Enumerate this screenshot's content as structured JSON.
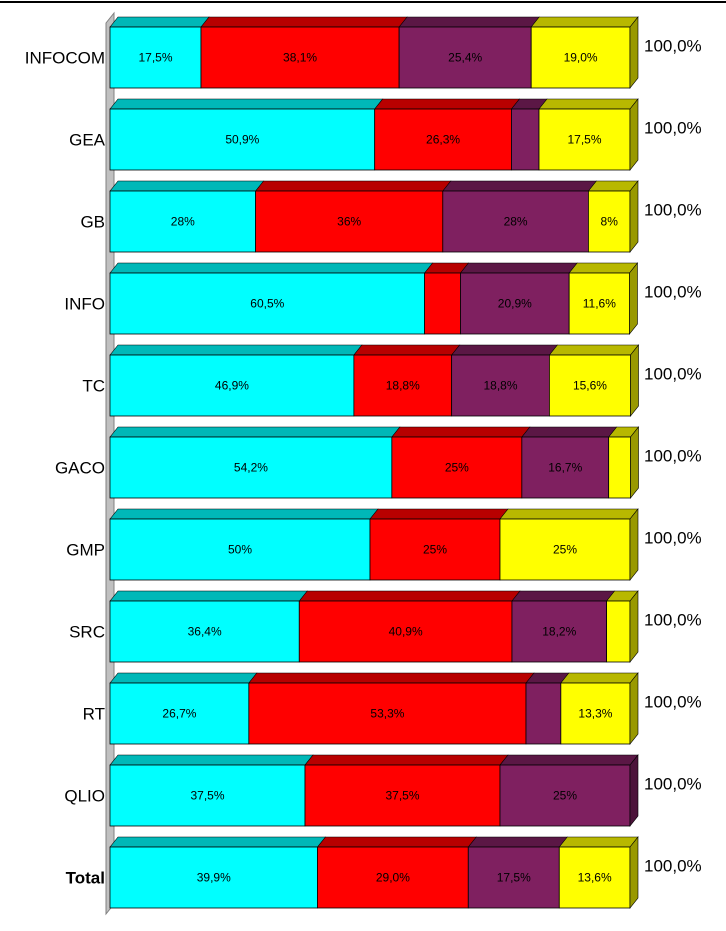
{
  "chart_data": {
    "type": "bar",
    "orientation": "horizontal",
    "stacked": true,
    "three_d": true,
    "grid": false,
    "categories": [
      "INFOCOM",
      "GEA",
      "GB",
      "INFO",
      "TC",
      "GACO",
      "GMP",
      "SRC",
      "RT",
      "QLIO",
      "Total"
    ],
    "series": [
      {
        "values": [
          17.5,
          50.9,
          28,
          60.5,
          46.9,
          54.2,
          50,
          36.4,
          26.7,
          37.5,
          39.9
        ],
        "labels": [
          "17,5%",
          "50,9%",
          "28%",
          "60,5%",
          "46,9%",
          "54,2%",
          "50%",
          "36,4%",
          "26,7%",
          "37,5%",
          "39,9%"
        ],
        "color": "#00FFFF"
      },
      {
        "values": [
          38.1,
          26.3,
          36,
          6.9,
          18.8,
          25,
          25,
          40.9,
          53.3,
          37.5,
          29.0
        ],
        "labels": [
          "38,1%",
          "26,3%",
          "36%",
          "",
          "18,8%",
          "25%",
          "25%",
          "40,9%",
          "53,3%",
          "37,5%",
          "29,0%"
        ],
        "color": "#FF0000"
      },
      {
        "values": [
          25.4,
          5.3,
          28,
          20.9,
          18.8,
          16.7,
          0,
          18.2,
          6.7,
          25,
          17.5
        ],
        "labels": [
          "25,4%",
          "",
          "28%",
          "20,9%",
          "18,8%",
          "16,7%",
          "",
          "18,2%",
          "",
          "25%",
          "17,5%"
        ],
        "color": "#7F2060"
      },
      {
        "values": [
          19.0,
          17.5,
          8,
          11.6,
          15.6,
          4.2,
          25,
          4.5,
          13.3,
          0,
          13.6
        ],
        "labels": [
          "19,0%",
          "17,5%",
          "8%",
          "11,6%",
          "15,6%",
          "",
          "25%",
          "",
          "13,3%",
          "",
          "13,6%"
        ],
        "color": "#FFFF00"
      }
    ],
    "totals": [
      "100,0%",
      "100,0%",
      "100,0%",
      "100,0%",
      "100,0%",
      "100,0%",
      "100,0%",
      "100,0%",
      "100,0%",
      "100,0%",
      "100,0%"
    ],
    "bold_categories": [
      "Total"
    ],
    "xlim": [
      0,
      100
    ]
  }
}
